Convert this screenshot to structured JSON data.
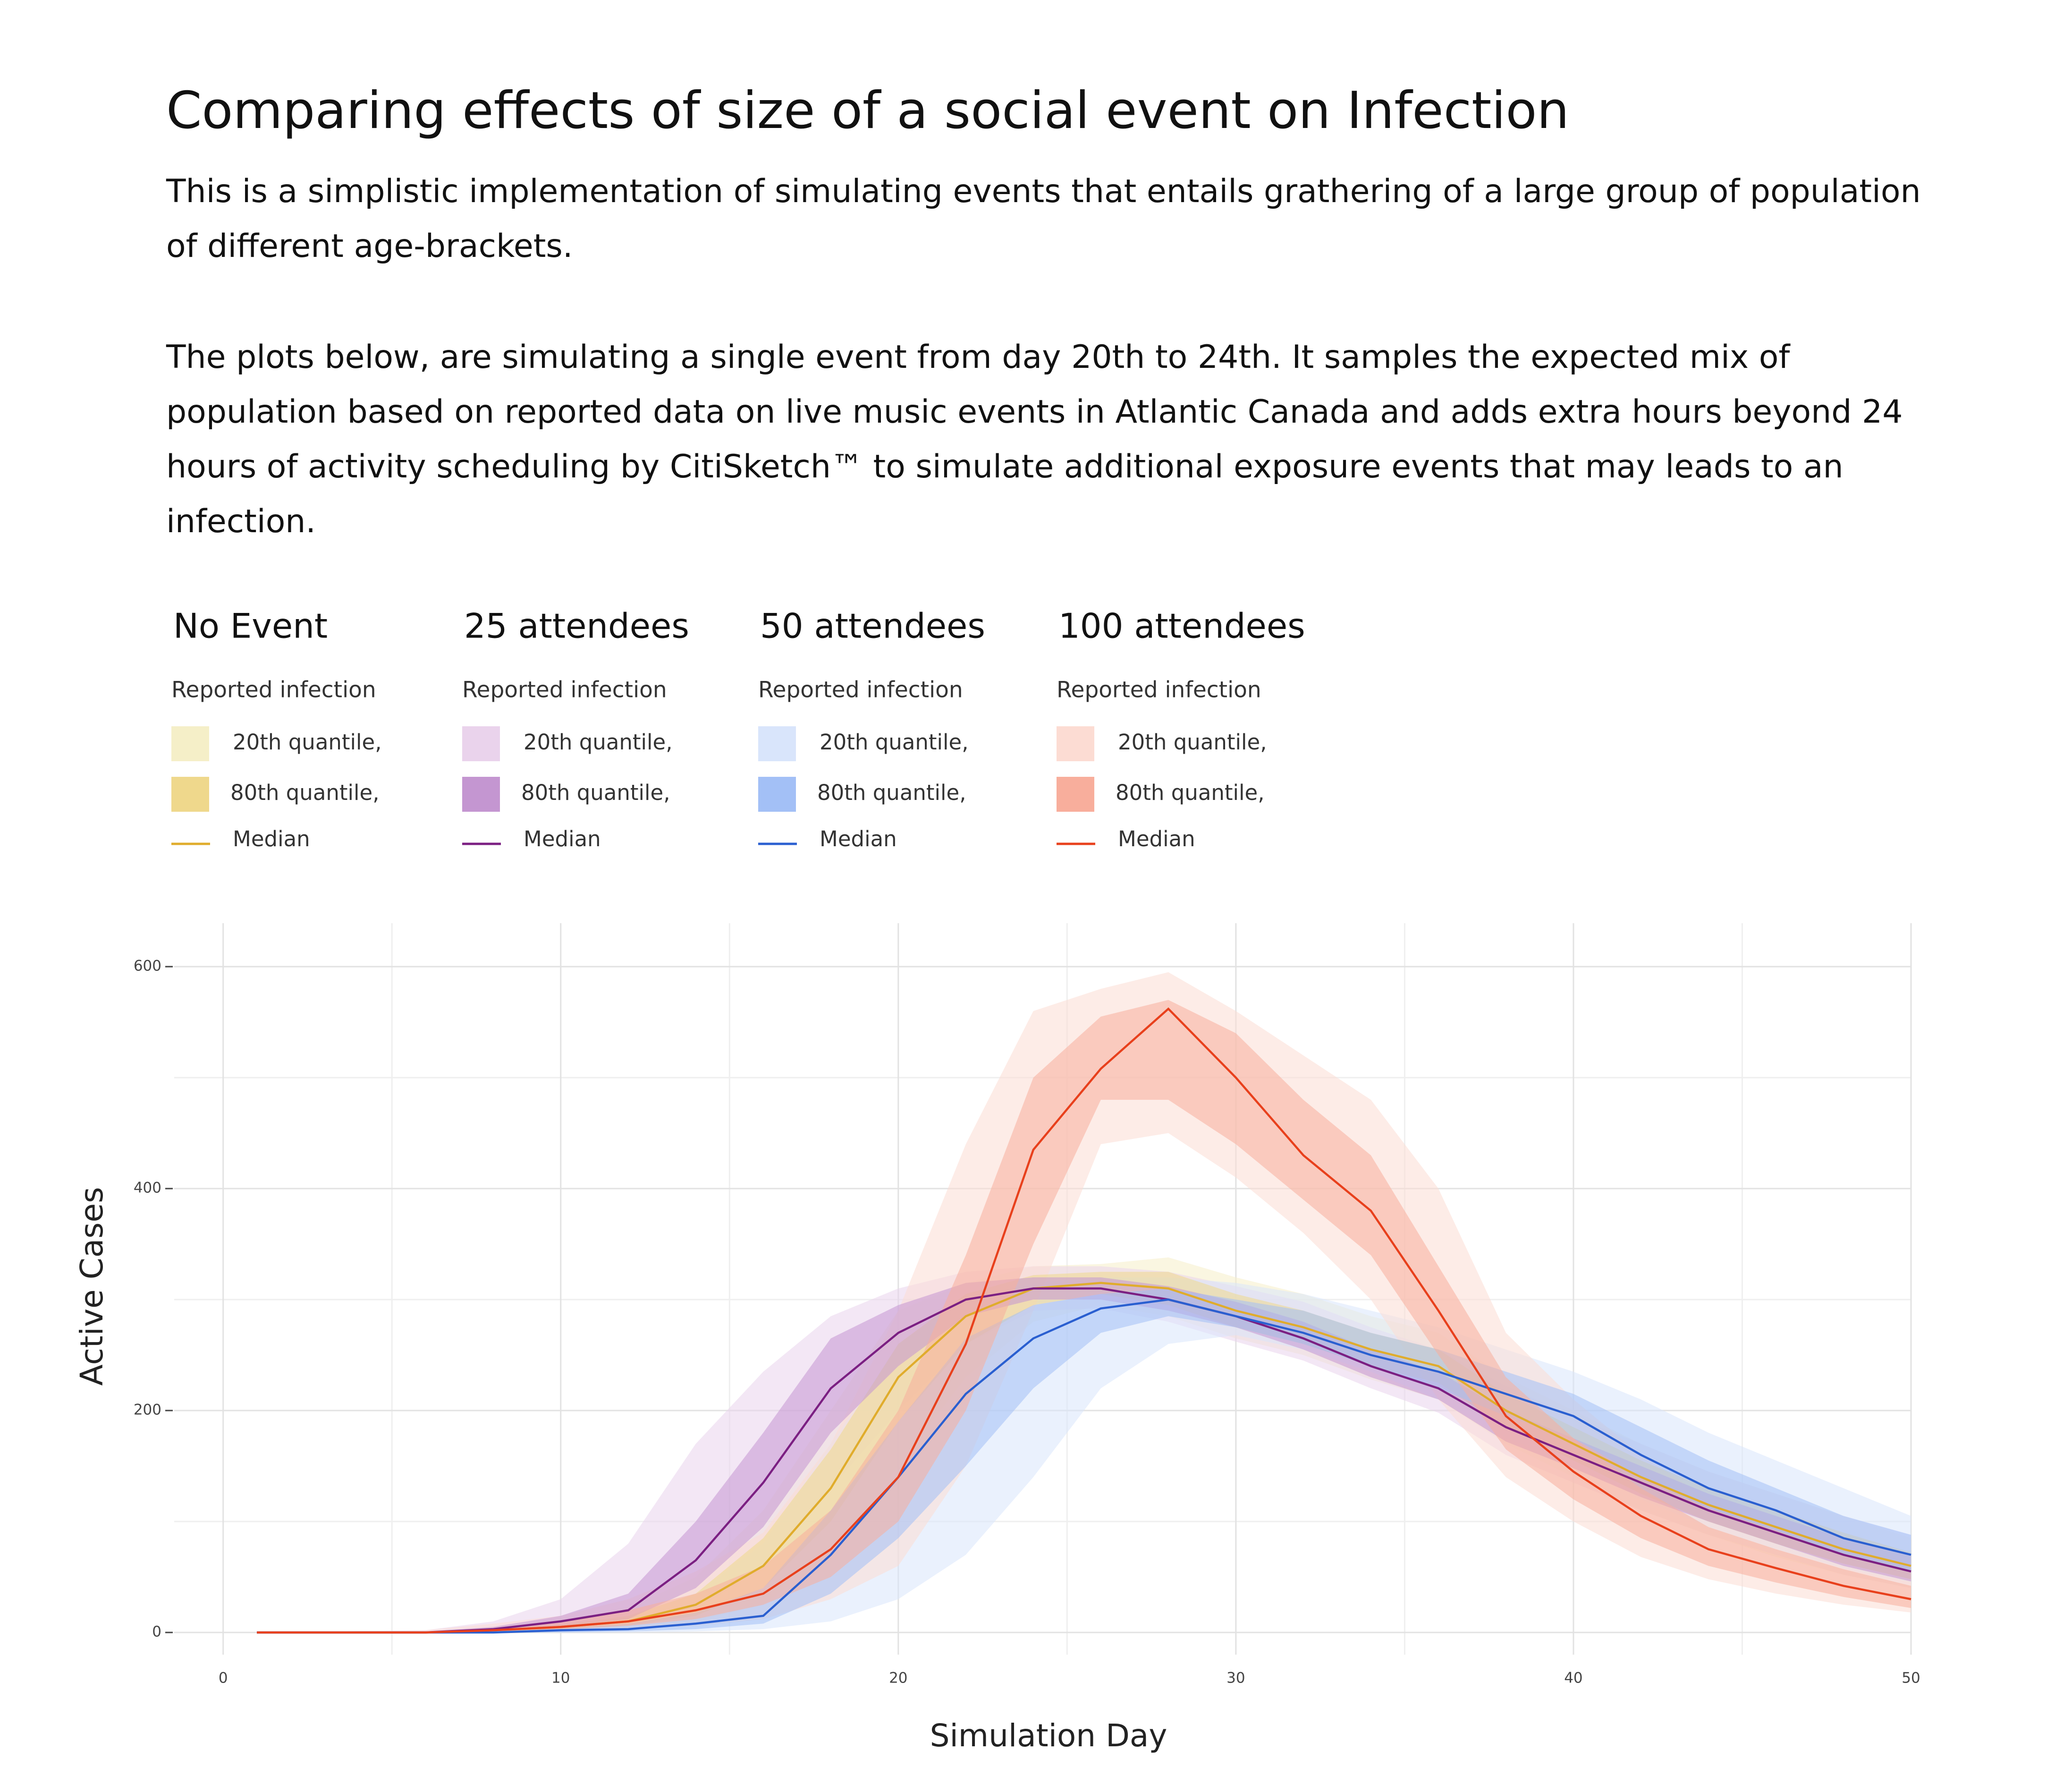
{
  "header": {
    "title": "Comparing effects of size of a social event on Infection",
    "paragraphs": [
      "This is a simplistic implementation of simulating events that entails grathering of a large group of population of different age-brackets.",
      "The plots below, are simulating a single event from day 20th to 24th. It samples the expected mix of population based on reported data on live music events in Atlantic Canada and adds extra hours beyond 24 hours of activity scheduling by CitiSketch™ to simulate additional exposure events that may leads to an infection."
    ]
  },
  "chart_data": {
    "type": "line",
    "x_label": "Simulation Day",
    "y_label": "Active Cases",
    "xlim": [
      -1.45,
      50
    ],
    "ylim": [
      -20,
      620
    ],
    "xticks": [
      0,
      10,
      20,
      30,
      40,
      50
    ],
    "yticks": [
      0,
      200,
      400,
      600
    ],
    "xminor": [
      5,
      15,
      25,
      35,
      45
    ],
    "yminor": [
      100,
      300,
      500
    ],
    "grid": true,
    "legend_labels": {
      "heading": "Reported infection",
      "outer": "20th quantile,",
      "inner": "80th quantile,",
      "median": "Median"
    },
    "x": [
      1,
      6,
      8,
      10,
      12,
      14,
      16,
      18,
      20,
      22,
      24,
      26,
      28,
      30,
      32,
      34,
      36,
      38,
      40,
      42,
      44,
      46,
      48,
      50
    ],
    "series": [
      {
        "name": "No Event",
        "color": "#e0ac2c",
        "band_colors": [
          "#f5efc8",
          "#efd88c"
        ],
        "values": [
          0,
          0,
          2,
          5,
          10,
          25,
          60,
          130,
          230,
          285,
          310,
          315,
          310,
          290,
          275,
          255,
          240,
          200,
          170,
          140,
          115,
          95,
          75,
          60
        ],
        "outer_low": [
          0,
          0,
          0,
          2,
          4,
          10,
          25,
          70,
          150,
          230,
          280,
          295,
          285,
          265,
          250,
          228,
          210,
          170,
          140,
          110,
          88,
          68,
          52,
          40
        ],
        "outer_high": [
          0,
          1,
          5,
          10,
          22,
          50,
          110,
          200,
          290,
          315,
          330,
          332,
          338,
          320,
          305,
          285,
          270,
          230,
          200,
          170,
          145,
          125,
          105,
          85
        ],
        "inner_low": [
          0,
          0,
          1,
          3,
          6,
          15,
          40,
          100,
          190,
          260,
          295,
          305,
          295,
          275,
          260,
          240,
          225,
          185,
          155,
          125,
          100,
          80,
          62,
          48
        ],
        "inner_high": [
          0,
          0,
          3,
          7,
          15,
          35,
          85,
          165,
          260,
          305,
          322,
          325,
          325,
          305,
          290,
          270,
          255,
          215,
          185,
          155,
          130,
          110,
          90,
          72
        ]
      },
      {
        "name": "25 attendees",
        "color": "#7b1f82",
        "band_colors": [
          "#ead3ec",
          "#c496d1"
        ],
        "values": [
          0,
          0,
          3,
          10,
          20,
          65,
          135,
          220,
          270,
          300,
          310,
          310,
          300,
          285,
          265,
          240,
          220,
          185,
          160,
          135,
          110,
          90,
          70,
          55
        ],
        "outer_low": [
          0,
          0,
          0,
          2,
          6,
          20,
          60,
          130,
          200,
          260,
          290,
          292,
          280,
          262,
          245,
          220,
          198,
          160,
          135,
          110,
          88,
          70,
          52,
          40
        ],
        "outer_high": [
          0,
          2,
          10,
          30,
          80,
          170,
          235,
          285,
          310,
          325,
          330,
          330,
          325,
          312,
          298,
          275,
          255,
          222,
          195,
          170,
          145,
          125,
          105,
          88
        ],
        "inner_low": [
          0,
          0,
          1,
          5,
          12,
          40,
          95,
          180,
          240,
          285,
          300,
          300,
          290,
          275,
          255,
          230,
          210,
          172,
          148,
          122,
          100,
          80,
          60,
          46
        ],
        "inner_high": [
          0,
          1,
          5,
          15,
          35,
          100,
          180,
          265,
          295,
          315,
          320,
          320,
          312,
          298,
          280,
          255,
          235,
          200,
          175,
          150,
          125,
          105,
          85,
          70
        ]
      },
      {
        "name": "50 attendees",
        "color": "#2a5fd0",
        "band_colors": [
          "#d9e5fb",
          "#a3c0f6"
        ],
        "values": [
          0,
          0,
          0,
          2,
          3,
          8,
          15,
          70,
          140,
          215,
          265,
          292,
          300,
          285,
          270,
          250,
          235,
          215,
          195,
          160,
          130,
          110,
          85,
          70
        ],
        "outer_low": [
          0,
          0,
          0,
          0,
          0,
          1,
          3,
          10,
          30,
          70,
          140,
          220,
          260,
          268,
          255,
          235,
          210,
          175,
          155,
          120,
          95,
          75,
          58,
          45
        ],
        "outer_high": [
          0,
          1,
          3,
          8,
          15,
          35,
          80,
          170,
          260,
          300,
          315,
          320,
          320,
          315,
          305,
          290,
          275,
          255,
          235,
          210,
          180,
          155,
          130,
          105
        ],
        "inner_low": [
          0,
          0,
          0,
          0,
          1,
          3,
          8,
          35,
          85,
          150,
          220,
          270,
          285,
          275,
          260,
          240,
          220,
          195,
          175,
          140,
          112,
          92,
          70,
          55
        ],
        "inner_high": [
          0,
          0,
          1,
          4,
          8,
          18,
          40,
          110,
          190,
          265,
          295,
          305,
          310,
          300,
          290,
          270,
          255,
          235,
          215,
          185,
          155,
          130,
          105,
          88
        ]
      },
      {
        "name": "100 attendees",
        "color": "#e8401c",
        "band_colors": [
          "#fcdcd3",
          "#f8ae9c"
        ],
        "values": [
          0,
          0,
          2,
          5,
          10,
          20,
          35,
          75,
          140,
          260,
          435,
          508,
          562,
          500,
          430,
          380,
          290,
          195,
          145,
          105,
          75,
          58,
          42,
          30
        ],
        "outer_low": [
          0,
          0,
          0,
          1,
          3,
          6,
          12,
          30,
          60,
          150,
          290,
          440,
          450,
          410,
          360,
          300,
          210,
          140,
          100,
          68,
          48,
          35,
          25,
          18
        ],
        "outer_high": [
          0,
          2,
          8,
          15,
          30,
          55,
          90,
          170,
          290,
          440,
          560,
          580,
          595,
          560,
          520,
          480,
          400,
          270,
          210,
          160,
          120,
          95,
          75,
          58
        ],
        "inner_low": [
          0,
          0,
          1,
          3,
          6,
          12,
          25,
          50,
          100,
          200,
          350,
          480,
          480,
          440,
          390,
          340,
          250,
          165,
          120,
          85,
          60,
          45,
          32,
          22
        ],
        "inner_high": [
          0,
          1,
          4,
          10,
          20,
          35,
          60,
          110,
          200,
          340,
          500,
          555,
          570,
          540,
          480,
          430,
          330,
          230,
          175,
          130,
          95,
          75,
          57,
          42
        ]
      }
    ]
  }
}
